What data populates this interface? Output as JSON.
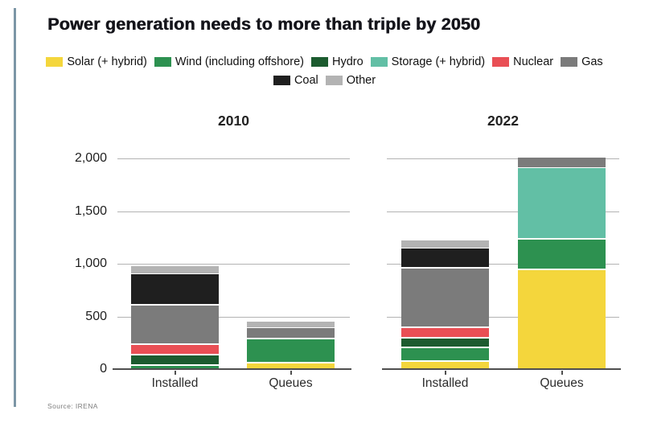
{
  "title": "Power generation needs to more than triple by 2050",
  "source_note": "Source: IRENA",
  "accent_color": "#7c96a6",
  "colors": {
    "solar": "#f4d63c",
    "wind": "#2d9150",
    "hydro": "#1c5b2f",
    "storage": "#62bfa5",
    "nuclear": "#e94f55",
    "gas": "#7b7b7b",
    "coal": "#1f1f1f",
    "other": "#b3b3b3"
  },
  "legend": {
    "rows": [
      [
        {
          "key": "solar",
          "label": "Solar (+ hybrid)"
        },
        {
          "key": "wind",
          "label": "Wind (including offshore)"
        },
        {
          "key": "hydro",
          "label": "Hydro"
        },
        {
          "key": "storage",
          "label": "Storage (+ hybrid)"
        },
        {
          "key": "nuclear",
          "label": "Nuclear"
        },
        {
          "key": "gas",
          "label": "Gas"
        }
      ],
      [
        {
          "key": "coal",
          "label": "Coal"
        },
        {
          "key": "other",
          "label": "Other"
        }
      ]
    ]
  },
  "chart_data": {
    "type": "bar",
    "stacked": true,
    "grid": true,
    "legend_position": "top",
    "ylim": [
      0,
      2000
    ],
    "yticks": [
      0,
      500,
      1000,
      1500,
      2000
    ],
    "ytick_labels": [
      "0",
      "500",
      "1,000",
      "1,500",
      "2,000"
    ],
    "stack_order_bottom_to_top": [
      "solar",
      "wind",
      "hydro",
      "storage",
      "nuclear",
      "gas",
      "coal",
      "other"
    ],
    "panels": [
      {
        "title": "2010",
        "categories": [
          "Installed",
          "Queues"
        ],
        "series": [
          {
            "key": "solar",
            "name": "Solar (+ hybrid)",
            "values": [
              0,
              65
            ]
          },
          {
            "key": "wind",
            "name": "Wind (including offshore)",
            "values": [
              40,
              225
            ]
          },
          {
            "key": "hydro",
            "name": "Hydro",
            "values": [
              95,
              0
            ]
          },
          {
            "key": "storage",
            "name": "Storage (+ hybrid)",
            "values": [
              0,
              0
            ]
          },
          {
            "key": "nuclear",
            "name": "Nuclear",
            "values": [
              100,
              0
            ]
          },
          {
            "key": "gas",
            "name": "Gas",
            "values": [
              375,
              105
            ]
          },
          {
            "key": "coal",
            "name": "Coal",
            "values": [
              300,
              0
            ]
          },
          {
            "key": "other",
            "name": "Other",
            "values": [
              70,
              55
            ]
          }
        ],
        "totals": [
          980,
          450
        ]
      },
      {
        "title": "2022",
        "categories": [
          "Installed",
          "Queues"
        ],
        "series": [
          {
            "key": "solar",
            "name": "Solar (+ hybrid)",
            "values": [
              80,
              950
            ]
          },
          {
            "key": "wind",
            "name": "Wind (including offshore)",
            "values": [
              130,
              290
            ]
          },
          {
            "key": "hydro",
            "name": "Hydro",
            "values": [
              85,
              0
            ]
          },
          {
            "key": "storage",
            "name": "Storage (+ hybrid)",
            "values": [
              0,
              675
            ]
          },
          {
            "key": "nuclear",
            "name": "Nuclear",
            "values": [
              105,
              0
            ]
          },
          {
            "key": "gas",
            "name": "Gas",
            "values": [
              560,
              90
            ]
          },
          {
            "key": "coal",
            "name": "Coal",
            "values": [
              195,
              0
            ]
          },
          {
            "key": "other",
            "name": "Other",
            "values": [
              70,
              0
            ]
          }
        ],
        "totals": [
          1225,
          2005
        ]
      }
    ]
  }
}
